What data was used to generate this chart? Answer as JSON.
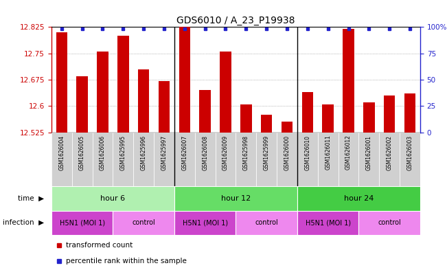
{
  "title": "GDS6010 / A_23_P19938",
  "samples": [
    "GSM1626004",
    "GSM1626005",
    "GSM1626006",
    "GSM1625995",
    "GSM1625996",
    "GSM1625997",
    "GSM1626007",
    "GSM1626008",
    "GSM1626009",
    "GSM1625998",
    "GSM1625999",
    "GSM1626000",
    "GSM1626010",
    "GSM1626011",
    "GSM1626012",
    "GSM1626001",
    "GSM1626002",
    "GSM1626003"
  ],
  "transformed_count": [
    12.81,
    12.685,
    12.755,
    12.8,
    12.705,
    12.67,
    12.825,
    12.645,
    12.755,
    12.605,
    12.575,
    12.555,
    12.64,
    12.605,
    12.82,
    12.61,
    12.63,
    12.635
  ],
  "ymin": 12.525,
  "ymax": 12.825,
  "yticks": [
    12.525,
    12.6,
    12.675,
    12.75,
    12.825
  ],
  "ytick_labels": [
    "12.525",
    "12.6",
    "12.675",
    "12.75",
    "12.825"
  ],
  "right_yticks": [
    0,
    25,
    50,
    75,
    100
  ],
  "right_ytick_labels": [
    "0",
    "25",
    "50",
    "75",
    "100%"
  ],
  "bar_color": "#cc0000",
  "dot_color": "#2222cc",
  "background_color": "#ffffff",
  "plot_bg_color": "#ffffff",
  "sample_bg_color": "#d0d0d0",
  "time_groups": [
    {
      "label": "hour 6",
      "start": 0,
      "end": 6,
      "color": "#b0f0b0"
    },
    {
      "label": "hour 12",
      "start": 6,
      "end": 12,
      "color": "#66dd66"
    },
    {
      "label": "hour 24",
      "start": 12,
      "end": 18,
      "color": "#44cc44"
    }
  ],
  "infection_groups": [
    {
      "label": "H5N1 (MOI 1)",
      "start": 0,
      "end": 3,
      "color": "#cc44cc"
    },
    {
      "label": "control",
      "start": 3,
      "end": 6,
      "color": "#ee88ee"
    },
    {
      "label": "H5N1 (MOI 1)",
      "start": 6,
      "end": 9,
      "color": "#cc44cc"
    },
    {
      "label": "control",
      "start": 9,
      "end": 12,
      "color": "#ee88ee"
    },
    {
      "label": "H5N1 (MOI 1)",
      "start": 12,
      "end": 15,
      "color": "#cc44cc"
    },
    {
      "label": "control",
      "start": 15,
      "end": 18,
      "color": "#ee88ee"
    }
  ],
  "grid_color": "#888888",
  "axis_color_left": "#cc0000",
  "axis_color_right": "#2222cc",
  "title_fontsize": 10,
  "bar_width": 0.55
}
